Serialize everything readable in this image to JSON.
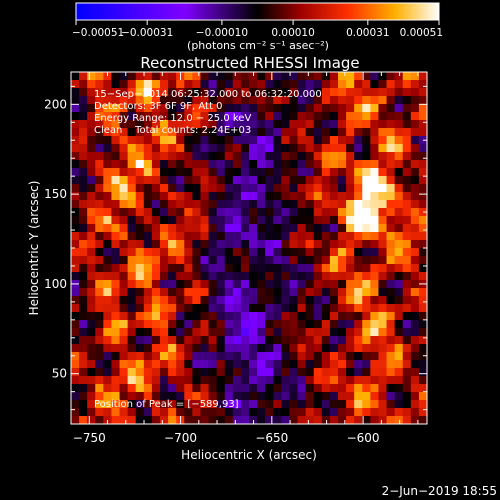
{
  "chart_data": {
    "type": "heatmap",
    "title": "Reconstructed RHESSI Image",
    "xlabel": "Heliocentric X (arcsec)",
    "ylabel": "Heliocentric Y (arcsec)",
    "xlim": [
      -760,
      -565
    ],
    "ylim": [
      22,
      218
    ],
    "x_ticks": [
      -750,
      -700,
      -650,
      -600
    ],
    "x_tick_labels": [
      "−750",
      "−700",
      "−650",
      "−600"
    ],
    "y_ticks": [
      50,
      100,
      150,
      200
    ],
    "y_tick_labels": [
      "50",
      "100",
      "150",
      "200"
    ],
    "colorbar": {
      "min": -0.00051,
      "max": 0.00051,
      "ticks": [
        -0.00051,
        -0.00031,
        -0.0001,
        0.0001,
        0.00031,
        0.00051
      ],
      "tick_labels": [
        "−0.00051",
        "−0.00031",
        "−0.00010",
        "0.00010",
        "0.00031",
        "0.00051"
      ],
      "units": "(photons cm⁻² s⁻¹ asec⁻²)"
    },
    "grid_size": [
      44,
      44
    ],
    "info_lines": [
      "15−Sep−2014 06:25:32.000 to 06:32:20.000",
      "Detectors: 3F 6F 9F, Att 0",
      "Energy Range: 12.0 − 25.0 keV",
      "Clean    Total counts: 2.24E+03"
    ],
    "peak_text": "Position of Peak = [−589,93]",
    "peak": [
      -589,
      93
    ]
  },
  "footer": {
    "date": "2−Jun−2019 18:55"
  },
  "colors": {
    "background": "#000000",
    "text": "#ffffff"
  }
}
